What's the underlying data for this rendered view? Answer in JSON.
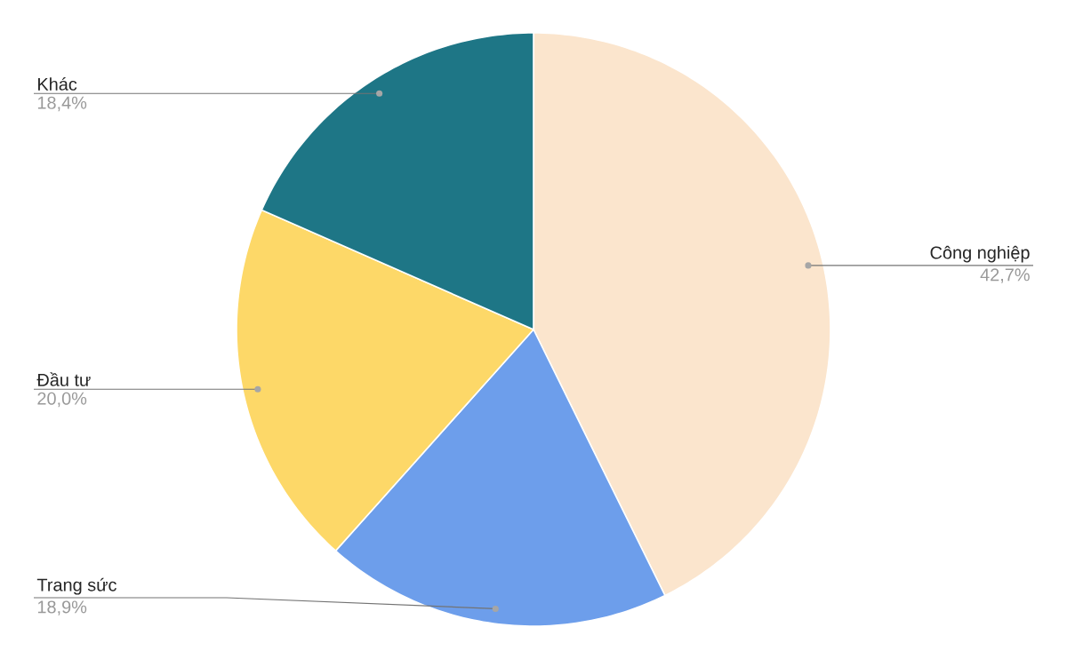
{
  "chart_data": {
    "type": "pie",
    "categories": [
      "Công nghiệp",
      "Trang sức",
      "Đầu tư",
      "Khác"
    ],
    "values": [
      42.7,
      18.9,
      20.0,
      18.4
    ],
    "value_labels": [
      "42,7%",
      "18,9%",
      "20,0%",
      "18,4%"
    ],
    "colors": [
      "#fbe5cd",
      "#6d9eeb",
      "#fdd868",
      "#1e7686"
    ]
  }
}
